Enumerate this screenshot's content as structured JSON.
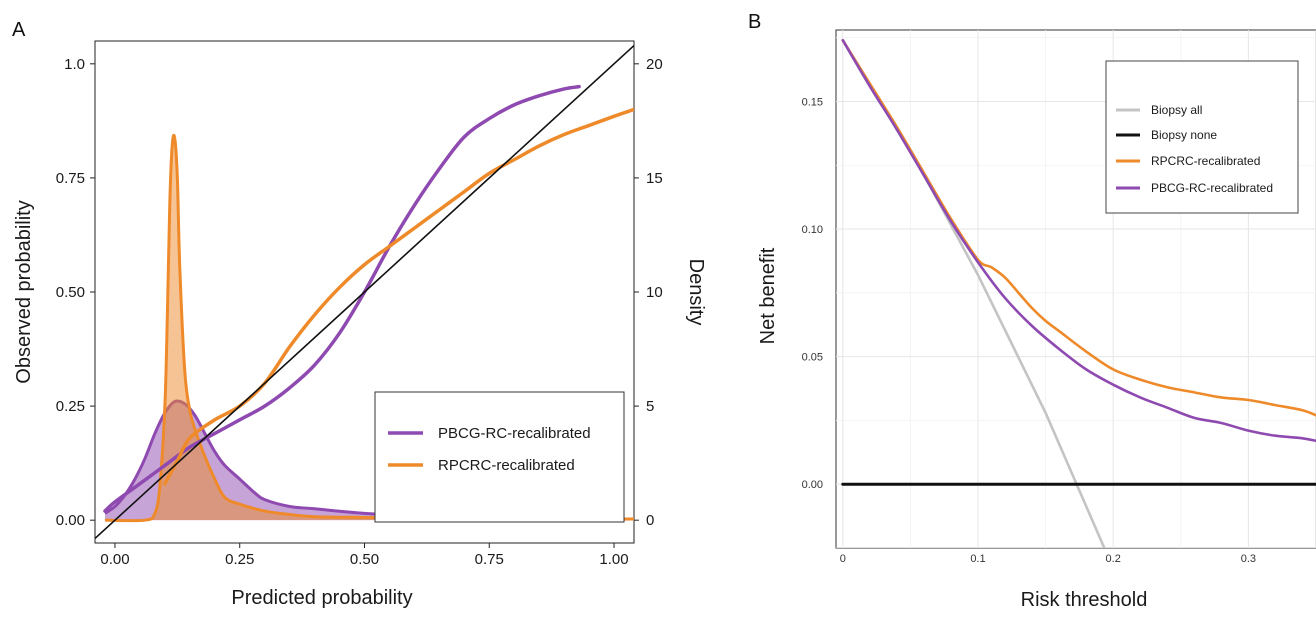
{
  "panels": {
    "a": {
      "letter": "A"
    },
    "b": {
      "letter": "B"
    }
  },
  "colors": {
    "purple": "#8e4ab0",
    "orange": "#ee8a2a",
    "gray": "#c4c4c4",
    "black": "#111111",
    "density_overlap": "#d9784a"
  },
  "chart_data": [
    {
      "type": "line",
      "panel": "A",
      "title": "",
      "xlabel": "Predicted probability",
      "ylabel": "Observed probability",
      "y2label": "Density",
      "xlim": [
        -0.04,
        1.04
      ],
      "ylim": [
        -0.05,
        1.05
      ],
      "y2lim": [
        -1,
        21
      ],
      "x_ticks": [
        0.0,
        0.25,
        0.5,
        0.75,
        1.0
      ],
      "x_tick_labels": [
        "0.00",
        "0.25",
        "0.50",
        "0.75",
        "1.00"
      ],
      "y_ticks": [
        0.0,
        0.25,
        0.5,
        0.75,
        1.0
      ],
      "y_tick_labels": [
        "0.00",
        "0.25",
        "0.50",
        "0.75",
        "1.0"
      ],
      "y2_ticks": [
        0,
        5,
        10,
        15,
        20
      ],
      "y2_tick_labels": [
        "0",
        "5",
        "10",
        "15",
        "20"
      ],
      "grid": false,
      "legend_position": "bottom-right",
      "reference_line": {
        "x": [
          -0.04,
          1.04
        ],
        "y": [
          -0.04,
          1.04
        ]
      },
      "series": [
        {
          "name": "PBCG-RC-recalibrated",
          "color": "#8e4ab0",
          "x": [
            -0.02,
            0.0,
            0.05,
            0.1,
            0.15,
            0.2,
            0.25,
            0.3,
            0.35,
            0.4,
            0.45,
            0.5,
            0.55,
            0.6,
            0.65,
            0.7,
            0.75,
            0.8,
            0.85,
            0.9,
            0.93
          ],
          "y": [
            0.02,
            0.04,
            0.08,
            0.12,
            0.16,
            0.19,
            0.22,
            0.25,
            0.29,
            0.34,
            0.41,
            0.5,
            0.6,
            0.69,
            0.77,
            0.84,
            0.88,
            0.91,
            0.93,
            0.945,
            0.95
          ]
        },
        {
          "name": "RPCRC-recalibrated",
          "color": "#ee8a2a",
          "x": [
            0.1,
            0.125,
            0.15,
            0.2,
            0.25,
            0.3,
            0.35,
            0.4,
            0.45,
            0.5,
            0.55,
            0.6,
            0.65,
            0.7,
            0.75,
            0.8,
            0.85,
            0.9,
            0.95,
            1.0,
            1.04
          ],
          "y": [
            0.08,
            0.13,
            0.18,
            0.22,
            0.25,
            0.3,
            0.38,
            0.45,
            0.51,
            0.56,
            0.6,
            0.64,
            0.68,
            0.72,
            0.76,
            0.79,
            0.82,
            0.845,
            0.865,
            0.885,
            0.9
          ]
        }
      ],
      "density": [
        {
          "name": "PBCG-RC-recalibrated",
          "color": "#8e4ab0",
          "x": [
            -0.02,
            0.0,
            0.02,
            0.04,
            0.06,
            0.08,
            0.1,
            0.12,
            0.14,
            0.16,
            0.18,
            0.2,
            0.22,
            0.25,
            0.28,
            0.3,
            0.35,
            0.4,
            0.5,
            0.6,
            0.7,
            0.8,
            0.9,
            1.0,
            1.04
          ],
          "y": [
            0.3,
            0.6,
            1.1,
            1.8,
            2.7,
            3.8,
            4.7,
            5.2,
            5.1,
            4.6,
            3.8,
            3.0,
            2.4,
            1.8,
            1.2,
            0.9,
            0.6,
            0.5,
            0.3,
            0.2,
            0.15,
            0.1,
            0.08,
            0.05,
            0.05
          ]
        },
        {
          "name": "RPCRC-recalibrated",
          "color": "#ee8a2a",
          "x": [
            -0.02,
            0.06,
            0.08,
            0.09,
            0.1,
            0.105,
            0.11,
            0.115,
            0.12,
            0.125,
            0.13,
            0.14,
            0.15,
            0.16,
            0.18,
            0.2,
            0.22,
            0.25,
            0.3,
            0.35,
            0.4,
            0.5,
            0.6,
            0.7,
            0.8,
            0.9,
            1.0,
            1.04
          ],
          "y": [
            0.0,
            0.0,
            0.3,
            1.5,
            5.0,
            9.0,
            14.0,
            16.5,
            16.7,
            15.0,
            11.0,
            6.5,
            4.8,
            4.0,
            2.8,
            1.8,
            1.0,
            0.7,
            0.4,
            0.25,
            0.15,
            0.12,
            0.1,
            0.08,
            0.06,
            0.05,
            0.05,
            0.05
          ]
        }
      ]
    },
    {
      "type": "line",
      "panel": "B",
      "title": "",
      "xlabel": "Risk threshold",
      "ylabel": "Net benefit",
      "xlim": [
        -0.005,
        0.35
      ],
      "ylim": [
        -0.025,
        0.178
      ],
      "x_ticks": [
        0,
        0.1,
        0.2,
        0.3
      ],
      "x_tick_labels": [
        "0",
        "0.1",
        "0.2",
        "0.3"
      ],
      "y_ticks": [
        0.0,
        0.05,
        0.1,
        0.15
      ],
      "y_tick_labels": [
        "0.00",
        "0.05",
        "0.10",
        "0.15"
      ],
      "grid": true,
      "legend_position": "top-right",
      "series": [
        {
          "name": "Biopsy all",
          "color": "#c4c4c4",
          "x": [
            0,
            0.05,
            0.1,
            0.15,
            0.2
          ],
          "y": [
            0.174,
            0.131,
            0.082,
            0.028,
            -0.033
          ]
        },
        {
          "name": "Biopsy none",
          "color": "#111111",
          "x": [
            0,
            0.35
          ],
          "y": [
            0,
            0
          ]
        },
        {
          "name": "RPCRC-recalibrated",
          "color": "#ee8a2a",
          "x": [
            0,
            0.02,
            0.04,
            0.06,
            0.08,
            0.1,
            0.11,
            0.12,
            0.13,
            0.14,
            0.15,
            0.16,
            0.18,
            0.2,
            0.22,
            0.24,
            0.26,
            0.28,
            0.3,
            0.32,
            0.34,
            0.35
          ],
          "y": [
            0.174,
            0.157,
            0.14,
            0.122,
            0.104,
            0.088,
            0.085,
            0.081,
            0.075,
            0.069,
            0.064,
            0.06,
            0.052,
            0.045,
            0.041,
            0.038,
            0.036,
            0.034,
            0.033,
            0.031,
            0.029,
            0.027
          ]
        },
        {
          "name": "PBCG-RC-recalibrated",
          "color": "#8e4ab0",
          "x": [
            0,
            0.02,
            0.04,
            0.06,
            0.08,
            0.1,
            0.12,
            0.14,
            0.16,
            0.18,
            0.2,
            0.22,
            0.24,
            0.26,
            0.28,
            0.3,
            0.32,
            0.34,
            0.35
          ],
          "y": [
            0.174,
            0.156,
            0.139,
            0.121,
            0.103,
            0.087,
            0.073,
            0.062,
            0.053,
            0.045,
            0.039,
            0.034,
            0.03,
            0.026,
            0.024,
            0.021,
            0.019,
            0.018,
            0.017
          ]
        }
      ]
    }
  ]
}
